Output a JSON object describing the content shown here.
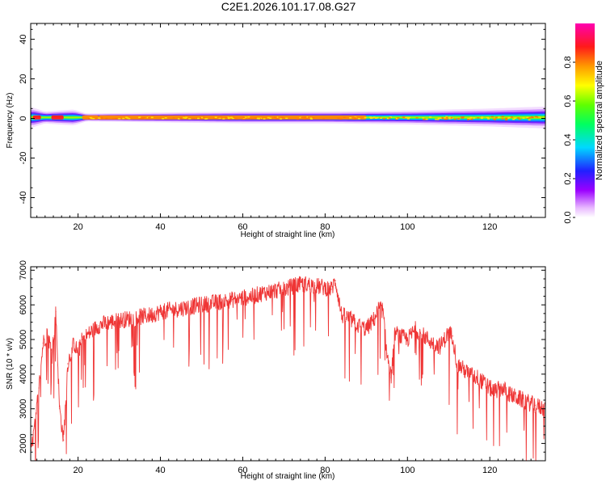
{
  "figure": {
    "title": "C2E1.2026.101.17.08.G27"
  },
  "chart_data": [
    {
      "type": "heatmap",
      "xlabel": "Height of straight line (km)",
      "ylabel": "Frequency (Hz)",
      "xlim": [
        8.5,
        133.5
      ],
      "ylim": [
        -50,
        48
      ],
      "xticks": [
        20,
        40,
        60,
        80,
        100,
        120
      ],
      "yticks": [
        -40,
        -20,
        0,
        20,
        40
      ],
      "grid": false,
      "colorbar": {
        "label": "Normalized spectral amplitude",
        "range": [
          0,
          1
        ],
        "ticks": [
          0.0,
          0.2,
          0.4,
          0.6,
          0.8
        ],
        "tick_labels": [
          "0.0",
          "0.2",
          "0.4",
          "0.6",
          "0.8"
        ],
        "colormap": "rainbow (white → violet → blue → cyan → green → yellow → orange → red → magenta)"
      },
      "description_values": {
        "peak_frequency_hz": 0.5,
        "spectral_halfwidth_hz": [
          [
            9,
            5
          ],
          [
            12,
            3
          ],
          [
            15,
            3.5
          ],
          [
            19,
            4
          ],
          [
            22,
            2
          ],
          [
            40,
            2.5
          ],
          [
            60,
            3
          ],
          [
            80,
            3
          ],
          [
            100,
            3.5
          ],
          [
            120,
            4.5
          ],
          [
            133,
            5.5
          ]
        ],
        "high_amplitude_segments_km": [
          [
            9,
            11
          ],
          [
            13.5,
            16.5
          ],
          [
            21,
            25
          ],
          [
            25,
            90
          ]
        ]
      }
    },
    {
      "type": "line",
      "xlabel": "Height of straight line (km)",
      "ylabel": "SNR (10 * v/v)",
      "xlim": [
        8.5,
        133.5
      ],
      "ylim": [
        1500,
        7100
      ],
      "xticks": [
        20,
        40,
        60,
        80,
        100,
        120
      ],
      "yticks": [
        2000,
        3000,
        4000,
        5000,
        6000,
        7000
      ],
      "grid": false,
      "series": [
        {
          "color": "#ef3535",
          "x": [
            8.6,
            9.5,
            10.5,
            11.5,
            12.5,
            13.5,
            14.2,
            14.6,
            15.5,
            16.5,
            17.5,
            19,
            20,
            21,
            23,
            25,
            27.5,
            30,
            32.5,
            35,
            37.5,
            40,
            42.5,
            45,
            47.5,
            50,
            52.5,
            55,
            57.5,
            60,
            62.5,
            65,
            67.5,
            70,
            72.5,
            75,
            77.5,
            80,
            81.5,
            82.5,
            84,
            86,
            88,
            90,
            92,
            93,
            94,
            95,
            96,
            97,
            98,
            100,
            102,
            104,
            106,
            108,
            110,
            111,
            112,
            113,
            115,
            117,
            119,
            121,
            123,
            125,
            127,
            129,
            131,
            133.4
          ],
          "y": [
            1800,
            2500,
            3600,
            4900,
            5200,
            4700,
            5100,
            5800,
            3000,
            2100,
            4300,
            4900,
            4600,
            5000,
            5200,
            5400,
            5500,
            5550,
            5600,
            5650,
            5700,
            5800,
            5850,
            5900,
            5950,
            6000,
            6050,
            6100,
            6150,
            6200,
            6250,
            6350,
            6400,
            6450,
            6550,
            6600,
            6550,
            6500,
            6450,
            6700,
            5700,
            5600,
            5400,
            5300,
            5600,
            5900,
            5850,
            4600,
            3900,
            5200,
            5100,
            5000,
            5300,
            5100,
            4900,
            4800,
            5200,
            5100,
            4300,
            4200,
            4000,
            3900,
            3700,
            3500,
            3600,
            3400,
            3300,
            3200,
            3100,
            3000
          ]
        }
      ]
    }
  ]
}
